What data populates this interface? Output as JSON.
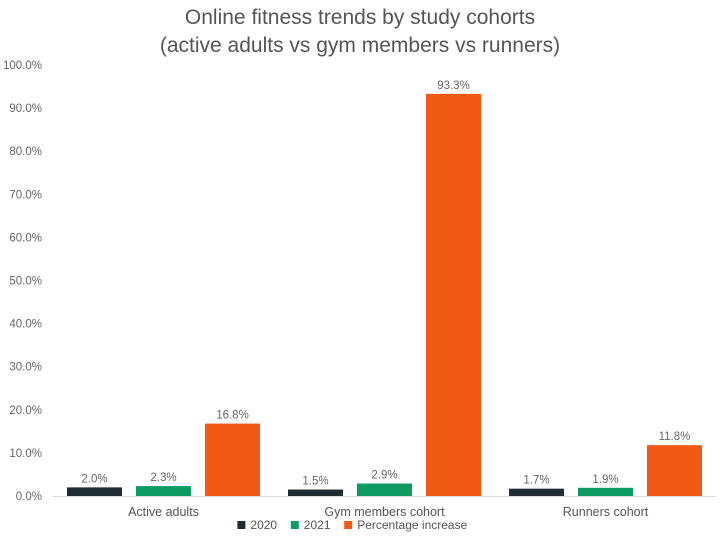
{
  "chart_data": {
    "type": "bar",
    "title": "Online fitness trends by study cohorts",
    "subtitle": "(active adults vs gym members vs runners)",
    "categories": [
      "Active adults",
      "Gym members cohort",
      "Runners cohort"
    ],
    "series": [
      {
        "name": "2020",
        "color": "#1f2d33",
        "values": [
          2.0,
          1.5,
          1.7
        ],
        "labels": [
          "2.0%",
          "1.5%",
          "1.7%"
        ]
      },
      {
        "name": "2021",
        "color": "#0e9a63",
        "values": [
          2.3,
          2.9,
          1.9
        ],
        "labels": [
          "2.3%",
          "2.9%",
          "1.9%"
        ]
      },
      {
        "name": "Percentage increase",
        "color": "#f15a14",
        "values": [
          16.8,
          93.3,
          11.8
        ],
        "labels": [
          "16.8%",
          "93.3%",
          "11.8%"
        ]
      }
    ],
    "yticks": [
      "0.0%",
      "10.0%",
      "20.0%",
      "30.0%",
      "40.0%",
      "50.0%",
      "60.0%",
      "70.0%",
      "80.0%",
      "90.0%",
      "100.0%"
    ],
    "ylim": [
      0,
      100
    ],
    "xlabel": "",
    "ylabel": "",
    "grid": false,
    "legend_position": "bottom"
  }
}
